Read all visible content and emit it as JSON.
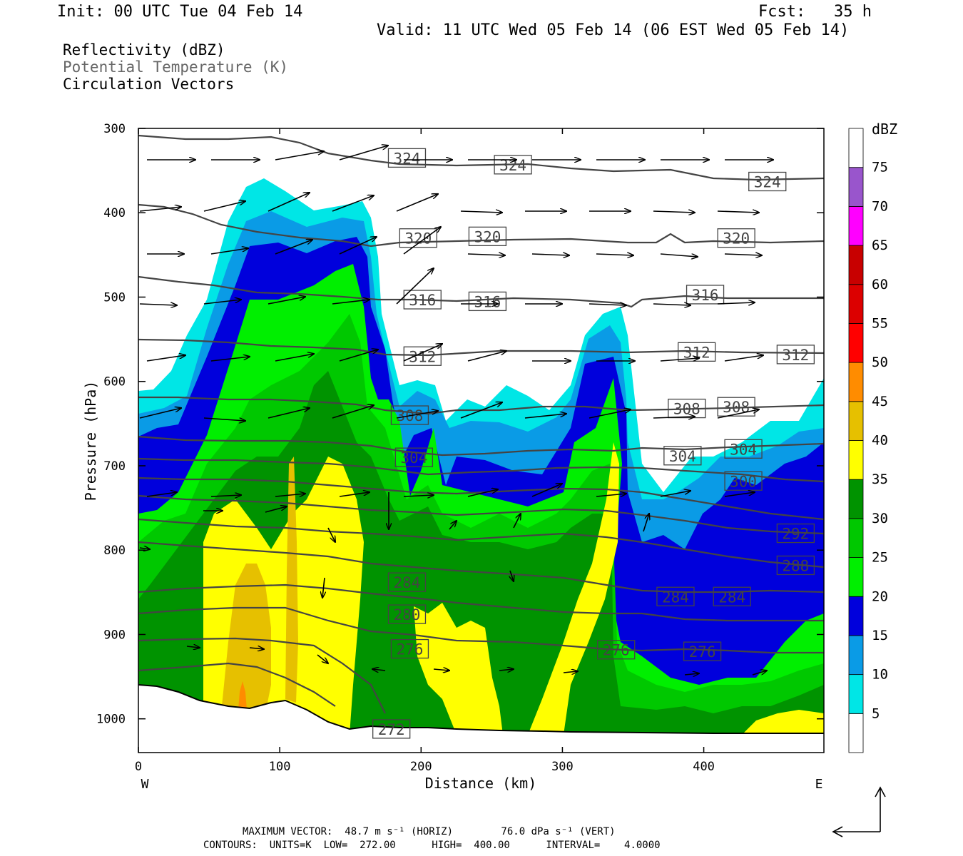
{
  "header": {
    "init": "Init: 00 UTC Tue 04 Feb 14",
    "fcst": "Fcst:   35 h",
    "valid": "Valid: 11 UTC Wed 05 Feb 14 (06 EST Wed 05 Feb 14)"
  },
  "legend_lines": [
    "Reflectivity (dBZ)",
    "Potential Temperature (K)",
    "Circulation Vectors"
  ],
  "footer": {
    "line1": "MAXIMUM VECTOR:  48.7 m s⁻¹ (HORIZ)        76.0 dPa s⁻¹ (VERT)",
    "line2": "CONTOURS:  UNITS=K  LOW=  272.00      HIGH=  400.00      INTERVAL=    4.0000"
  },
  "colors": {
    "cb_5": "#00e6e6",
    "cb_10": "#0a9be6",
    "cb_15": "#0000dc",
    "cb_20": "#00ef00",
    "cb_25": "#00c800",
    "cb_30": "#009300",
    "cb_35": "#ffff00",
    "cb_40": "#e6c000",
    "cb_45": "#ff8c00",
    "cb_50": "#ff0000",
    "cb_55": "#dc0000",
    "cb_60": "#c80000",
    "cb_65": "#b40000",
    "cb_70": "#ff00ff",
    "cb_75": "#9955cc",
    "contour": "#444444"
  },
  "chart_data": {
    "type": "cross-section",
    "xlabel": "Distance (km)",
    "ylabel": "Pressure (hPa)",
    "xlim": [
      0,
      485
    ],
    "ylim": [
      1040,
      300
    ],
    "xticks": [
      0,
      100,
      200,
      300,
      400
    ],
    "yticks": [
      300,
      400,
      500,
      600,
      700,
      800,
      900,
      1000
    ],
    "direction_labels": {
      "left": "W",
      "right": "E"
    },
    "colorbar": {
      "unit": "dBZ",
      "levels": [
        5,
        10,
        15,
        20,
        25,
        30,
        35,
        40,
        45,
        50,
        55,
        60,
        65,
        70,
        75
      ]
    },
    "theta_labels": [
      {
        "value": "324",
        "x": 190,
        "p": 335
      },
      {
        "value": "324",
        "x": 265,
        "p": 343
      },
      {
        "value": "324",
        "x": 445,
        "p": 363
      },
      {
        "value": "320",
        "x": 198,
        "p": 430
      },
      {
        "value": "320",
        "x": 247,
        "p": 428
      },
      {
        "value": "320",
        "x": 423,
        "p": 430
      },
      {
        "value": "316",
        "x": 201,
        "p": 503
      },
      {
        "value": "316",
        "x": 247,
        "p": 505
      },
      {
        "value": "316",
        "x": 401,
        "p": 497
      },
      {
        "value": "312",
        "x": 201,
        "p": 570
      },
      {
        "value": "312",
        "x": 395,
        "p": 565
      },
      {
        "value": "312",
        "x": 465,
        "p": 568
      },
      {
        "value": "308",
        "x": 192,
        "p": 640
      },
      {
        "value": "308",
        "x": 388,
        "p": 632
      },
      {
        "value": "308",
        "x": 423,
        "p": 630
      },
      {
        "value": "304",
        "x": 195,
        "p": 690
      },
      {
        "value": "304",
        "x": 385,
        "p": 688
      },
      {
        "value": "304",
        "x": 428,
        "p": 680
      },
      {
        "value": "300",
        "x": 428,
        "p": 718
      },
      {
        "value": "292",
        "x": 465,
        "p": 780
      },
      {
        "value": "288",
        "x": 465,
        "p": 818
      },
      {
        "value": "284",
        "x": 190,
        "p": 838
      },
      {
        "value": "284",
        "x": 380,
        "p": 855
      },
      {
        "value": "284",
        "x": 420,
        "p": 855
      },
      {
        "value": "280",
        "x": 190,
        "p": 876
      },
      {
        "value": "276",
        "x": 192,
        "p": 917
      },
      {
        "value": "276",
        "x": 338,
        "p": 918
      },
      {
        "value": "276",
        "x": 399,
        "p": 920
      },
      {
        "value": "272",
        "x": 179,
        "p": 1012
      }
    ]
  }
}
